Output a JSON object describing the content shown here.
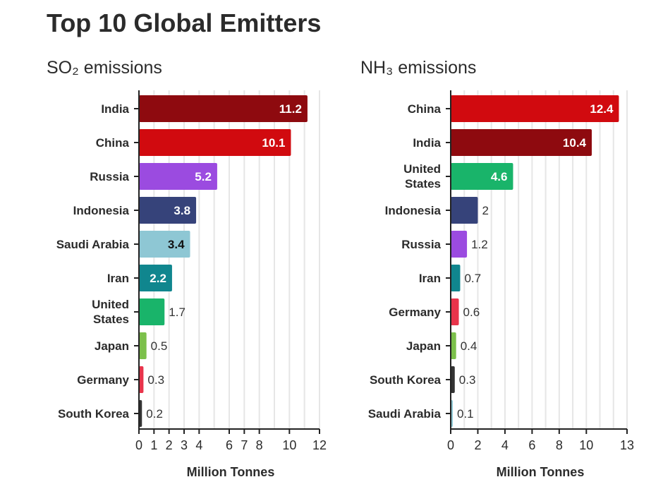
{
  "title": "Top 10 Global Emitters",
  "colors": {
    "India": "#8e0a0f",
    "China": "#d10a0f",
    "Russia": "#9b4be0",
    "Indonesia": "#36437a",
    "Saudi Arabia": "#8ec7d4",
    "Iran": "#10868e",
    "United States": "#19b46a",
    "Japan": "#7cc04b",
    "Germany": "#e8344b",
    "South Korea": "#333333"
  },
  "chart_data": [
    {
      "type": "bar",
      "orientation": "horizontal",
      "subtitle": "SO₂ emissions",
      "categories": [
        "India",
        "China",
        "Russia",
        "Indonesia",
        "Saudi Arabia",
        "Iran",
        "United States",
        "Japan",
        "Germany",
        "South Korea"
      ],
      "values": [
        11.2,
        10.1,
        5.2,
        3.8,
        3.4,
        2.2,
        1.7,
        0.5,
        0.3,
        0.2
      ],
      "value_labels": [
        "11.2",
        "10.1",
        "5.2",
        "3.8",
        "3.4",
        "2.2",
        "1.7",
        "0.5",
        "0.3",
        "0.2"
      ],
      "xlabel": "Million Tonnes",
      "xlim": [
        0,
        12
      ],
      "xticks": [
        0,
        1,
        2,
        3,
        4,
        6,
        7,
        8,
        10,
        12
      ],
      "xtick_labels": [
        "0",
        "1",
        "2",
        "3",
        "4",
        "6",
        "7",
        "8",
        "10",
        "12"
      ],
      "grid": true
    },
    {
      "type": "bar",
      "orientation": "horizontal",
      "subtitle": "NH₃ emissions",
      "categories": [
        "China",
        "India",
        "United States",
        "Indonesia",
        "Russia",
        "Iran",
        "Germany",
        "Japan",
        "South Korea",
        "Saudi Arabia"
      ],
      "values": [
        12.4,
        10.4,
        4.6,
        2,
        1.2,
        0.7,
        0.6,
        0.4,
        0.3,
        0.1
      ],
      "value_labels": [
        "12.4",
        "10.4",
        "4.6",
        "2",
        "1.2",
        "0.7",
        "0.6",
        "0.4",
        "0.3",
        "0.1"
      ],
      "xlabel": "Million Tonnes",
      "xlim": [
        0,
        13
      ],
      "xticks": [
        0,
        2,
        4,
        6,
        8,
        10,
        13
      ],
      "xtick_labels": [
        "0",
        "2",
        "4",
        "6",
        "8",
        "10",
        "13"
      ],
      "grid": true
    }
  ]
}
